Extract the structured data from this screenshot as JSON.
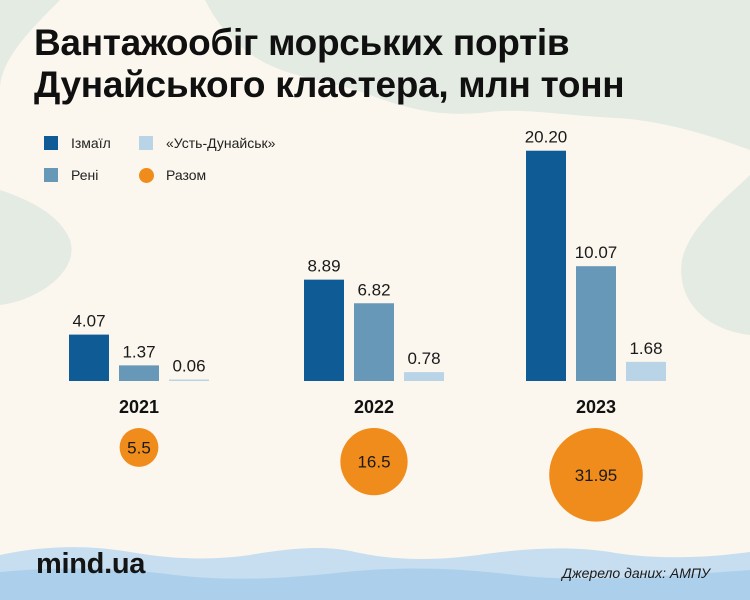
{
  "title_lines": [
    "Вантажообіг морських портів",
    "Дунайського кластера, млн тонн"
  ],
  "legend": [
    {
      "label": "Ізмаїл",
      "shape": "square",
      "color": "#0e5b95"
    },
    {
      "label": "«Усть-Дунайськ»",
      "shape": "square",
      "color": "#b9d4e6"
    },
    {
      "label": "Рені",
      "shape": "square",
      "color": "#6898b8"
    },
    {
      "label": "Разом",
      "shape": "circle",
      "color": "#f08c1c"
    }
  ],
  "chart_data": {
    "type": "bar",
    "title": "Вантажообіг морських портів Дунайського кластера, млн тонн",
    "categories": [
      "2021",
      "2022",
      "2023"
    ],
    "series": [
      {
        "name": "Ізмаїл",
        "color": "#0e5b95",
        "values": [
          4.07,
          8.89,
          20.2
        ],
        "labels": [
          "4.07",
          "8.89",
          "20.20"
        ]
      },
      {
        "name": "Рені",
        "color": "#6898b8",
        "values": [
          1.37,
          6.82,
          10.07
        ],
        "labels": [
          "1.37",
          "6.82",
          "10.07"
        ]
      },
      {
        "name": "«Усть-Дунайськ»",
        "color": "#b9d4e6",
        "values": [
          0.06,
          0.78,
          1.68
        ],
        "labels": [
          "0.06",
          "0.78",
          "1.68"
        ]
      }
    ],
    "totals": {
      "name": "Разом",
      "color": "#f08c1c",
      "values": [
        5.5,
        16.5,
        31.95
      ],
      "labels": [
        "5.5",
        "16.5",
        "31.95"
      ]
    },
    "grid": false
  },
  "brand": "mind.ua",
  "source": "Джерело даних: АМПУ"
}
